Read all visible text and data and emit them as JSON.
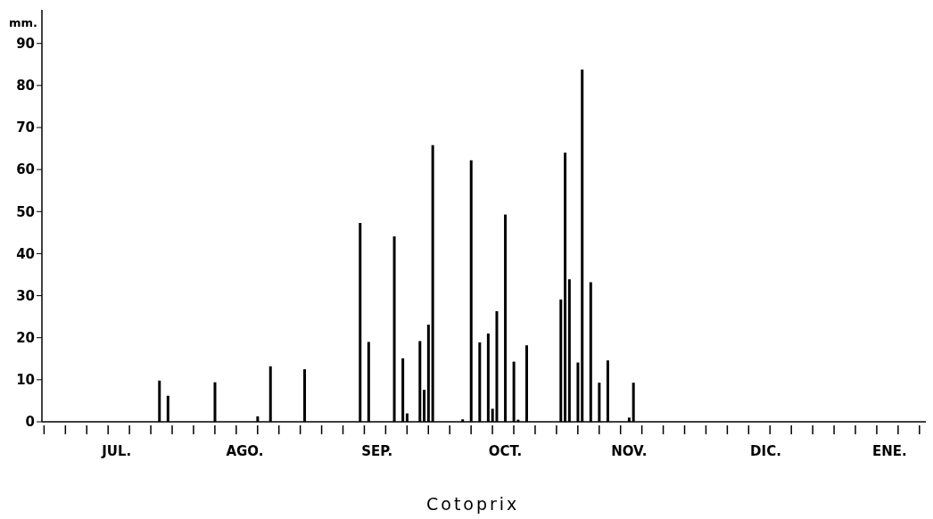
{
  "chart_data": {
    "type": "bar",
    "title": "Cotoprix",
    "ylabel": "mm.",
    "categories": [
      null,
      null,
      null,
      null,
      null,
      null,
      null,
      null,
      null,
      null,
      null,
      null,
      null,
      null,
      null,
      null,
      null,
      "JUL.",
      null,
      null,
      null,
      null,
      null,
      null,
      null,
      null,
      null,
      null,
      null,
      null,
      null,
      null,
      null,
      null,
      null,
      null,
      null,
      null,
      null,
      null,
      null,
      null,
      null,
      null,
      null,
      null,
      null,
      "AGO.",
      null,
      null,
      null,
      null,
      null,
      null,
      null,
      null,
      null,
      null,
      null,
      null,
      null,
      null,
      null,
      null,
      null,
      null,
      null,
      null,
      null,
      null,
      null,
      null,
      null,
      null,
      null,
      null,
      null,
      null,
      "SEP.",
      null,
      null,
      null,
      null,
      null,
      null,
      null,
      null,
      null,
      null,
      null,
      null,
      null,
      null,
      null,
      null,
      null,
      null,
      null,
      null,
      null,
      null,
      null,
      null,
      null,
      null,
      null,
      null,
      null,
      "OCT.",
      null,
      null,
      null,
      null,
      null,
      null,
      null,
      null,
      null,
      null,
      null,
      null,
      null,
      null,
      null,
      null,
      null,
      null,
      null,
      null,
      null,
      null,
      null,
      null,
      null,
      null,
      null,
      null,
      "NOV.",
      null,
      null,
      null,
      null,
      null,
      null,
      null,
      null,
      null,
      null,
      null,
      null,
      null,
      null,
      null,
      null,
      null,
      null,
      null,
      null,
      null,
      null,
      null,
      null,
      null,
      null,
      null,
      null,
      null,
      null,
      null,
      "DIC.",
      null,
      null,
      null,
      null,
      null,
      null,
      null,
      null,
      null,
      null,
      null,
      null,
      null,
      null,
      null,
      null,
      null,
      null,
      null,
      null,
      null,
      null,
      null,
      null,
      null,
      null,
      null,
      null,
      "ENE.",
      null,
      null,
      null,
      null,
      null,
      null,
      null,
      null
    ],
    "values": [
      null,
      null,
      null,
      null,
      null,
      null,
      null,
      null,
      null,
      null,
      null,
      null,
      null,
      null,
      null,
      null,
      null,
      null,
      null,
      null,
      null,
      null,
      null,
      null,
      null,
      null,
      null,
      9.8,
      null,
      6.2,
      null,
      null,
      null,
      null,
      null,
      null,
      null,
      null,
      null,
      null,
      9.4,
      null,
      null,
      null,
      null,
      null,
      null,
      null,
      null,
      null,
      1.3,
      null,
      null,
      13.2,
      null,
      null,
      null,
      null,
      null,
      null,
      null,
      12.5,
      null,
      null,
      null,
      null,
      null,
      null,
      null,
      null,
      null,
      null,
      null,
      null,
      47.3,
      null,
      19,
      null,
      null,
      null,
      null,
      null,
      44.1,
      null,
      15.1,
      2,
      null,
      null,
      19.2,
      7.6,
      23.1,
      65.8,
      null,
      null,
      null,
      null,
      null,
      null,
      0.6,
      null,
      62.2,
      null,
      18.9,
      null,
      21,
      3.1,
      26.3,
      null,
      49.3,
      null,
      14.3,
      0.5,
      null,
      18.2,
      null,
      null,
      null,
      null,
      null,
      null,
      null,
      29.1,
      64,
      33.9,
      null,
      14.1,
      83.8,
      null,
      33.2,
      null,
      9.3,
      null,
      14.6,
      null,
      null,
      null,
      null,
      1,
      9.3,
      null,
      null,
      null,
      null,
      null,
      null,
      null,
      null,
      null,
      null,
      null,
      null,
      null,
      null,
      null,
      null,
      null,
      null,
      null,
      null,
      null,
      null,
      null,
      null,
      null,
      null,
      null,
      null,
      null,
      null,
      null,
      null,
      null,
      null,
      null,
      null,
      null,
      null,
      null,
      null,
      null,
      null,
      null,
      null,
      null,
      null,
      null,
      null,
      null,
      null,
      null,
      null,
      null,
      null,
      null,
      null,
      null,
      null,
      null,
      null,
      null,
      null,
      null,
      null,
      null,
      null,
      null,
      null
    ],
    "color": "#000000",
    "ylim": [
      0,
      98
    ],
    "yticks": [
      0,
      10,
      20,
      30,
      40,
      50,
      60,
      70,
      80,
      90
    ],
    "grid": false
  }
}
